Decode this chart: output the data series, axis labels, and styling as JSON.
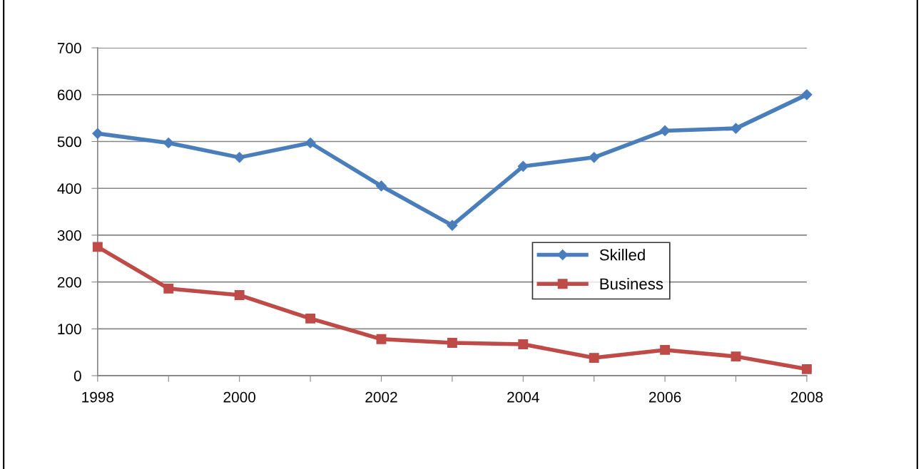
{
  "chart_data": {
    "type": "line",
    "x": [
      1998,
      1999,
      2000,
      2001,
      2002,
      2003,
      2004,
      2005,
      2006,
      2007,
      2008
    ],
    "series": [
      {
        "name": "Skilled",
        "color": "#4a7ebb",
        "marker": "diamond",
        "values": [
          517,
          497,
          466,
          497,
          405,
          321,
          447,
          466,
          523,
          528,
          600
        ]
      },
      {
        "name": "Business",
        "color": "#be4b48",
        "marker": "square",
        "values": [
          275,
          186,
          172,
          122,
          78,
          70,
          67,
          38,
          55,
          41,
          14
        ]
      }
    ],
    "xlim": [
      1998,
      2008
    ],
    "xticks": [
      1998,
      {
        "value": 1999,
        "label": null
      },
      2000,
      {
        "value": 2001,
        "label": null
      },
      2002,
      {
        "value": 2003,
        "label": null
      },
      2004,
      {
        "value": 2005,
        "label": null
      },
      2006,
      {
        "value": 2007,
        "label": null
      },
      2008
    ],
    "ylim": [
      0,
      700
    ],
    "yticks": [
      0,
      100,
      200,
      300,
      400,
      500,
      600,
      700
    ],
    "grid": "y",
    "legend": "center",
    "line_style": "solid"
  }
}
